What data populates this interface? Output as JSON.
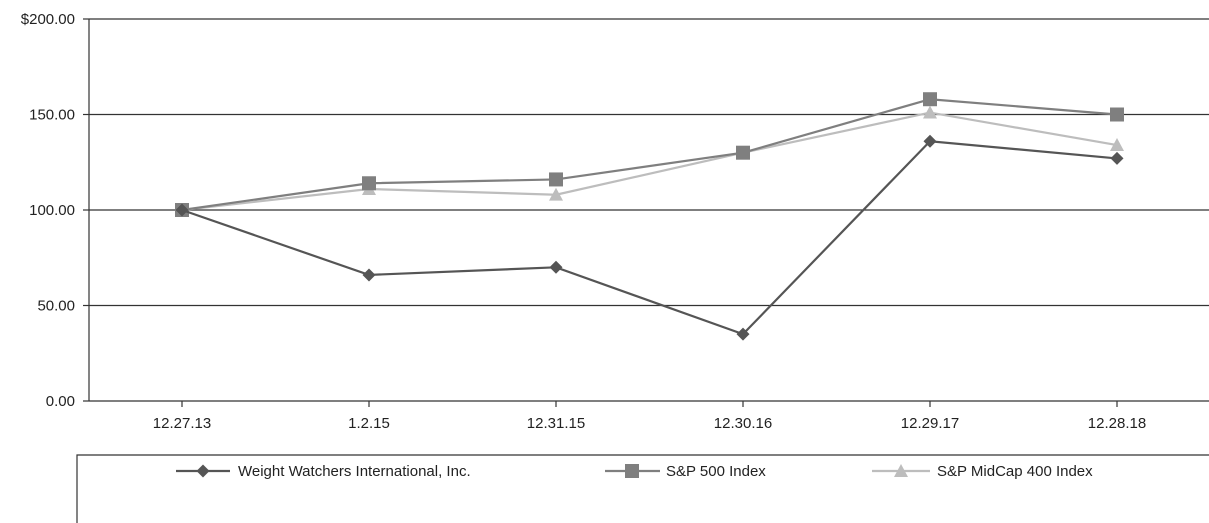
{
  "chart_data": {
    "type": "line",
    "title": "",
    "xlabel": "",
    "ylabel": "",
    "categories": [
      "12.27.13",
      "1.2.15",
      "12.31.15",
      "12.30.16",
      "12.29.17",
      "12.28.18"
    ],
    "y_tick_labels": [
      "$200.00",
      "150.00",
      "100.00",
      "50.00",
      "0.00"
    ],
    "y_ticks": [
      200,
      150,
      100,
      50,
      0
    ],
    "ylim": [
      0,
      200
    ],
    "grid": true,
    "legend_position": "bottom",
    "series": [
      {
        "name": "Weight Watchers International, Inc.",
        "marker": "diamond",
        "color": "#555555",
        "values": [
          100,
          66,
          70,
          35,
          136,
          127
        ]
      },
      {
        "name": "S&P 500 Index",
        "marker": "square",
        "color": "#7f7f7f",
        "values": [
          100,
          114,
          116,
          130,
          158,
          150
        ]
      },
      {
        "name": "S&P MidCap 400 Index",
        "marker": "triangle",
        "color": "#bdbdbd",
        "values": [
          100,
          111,
          108,
          130,
          151,
          134
        ]
      }
    ]
  }
}
